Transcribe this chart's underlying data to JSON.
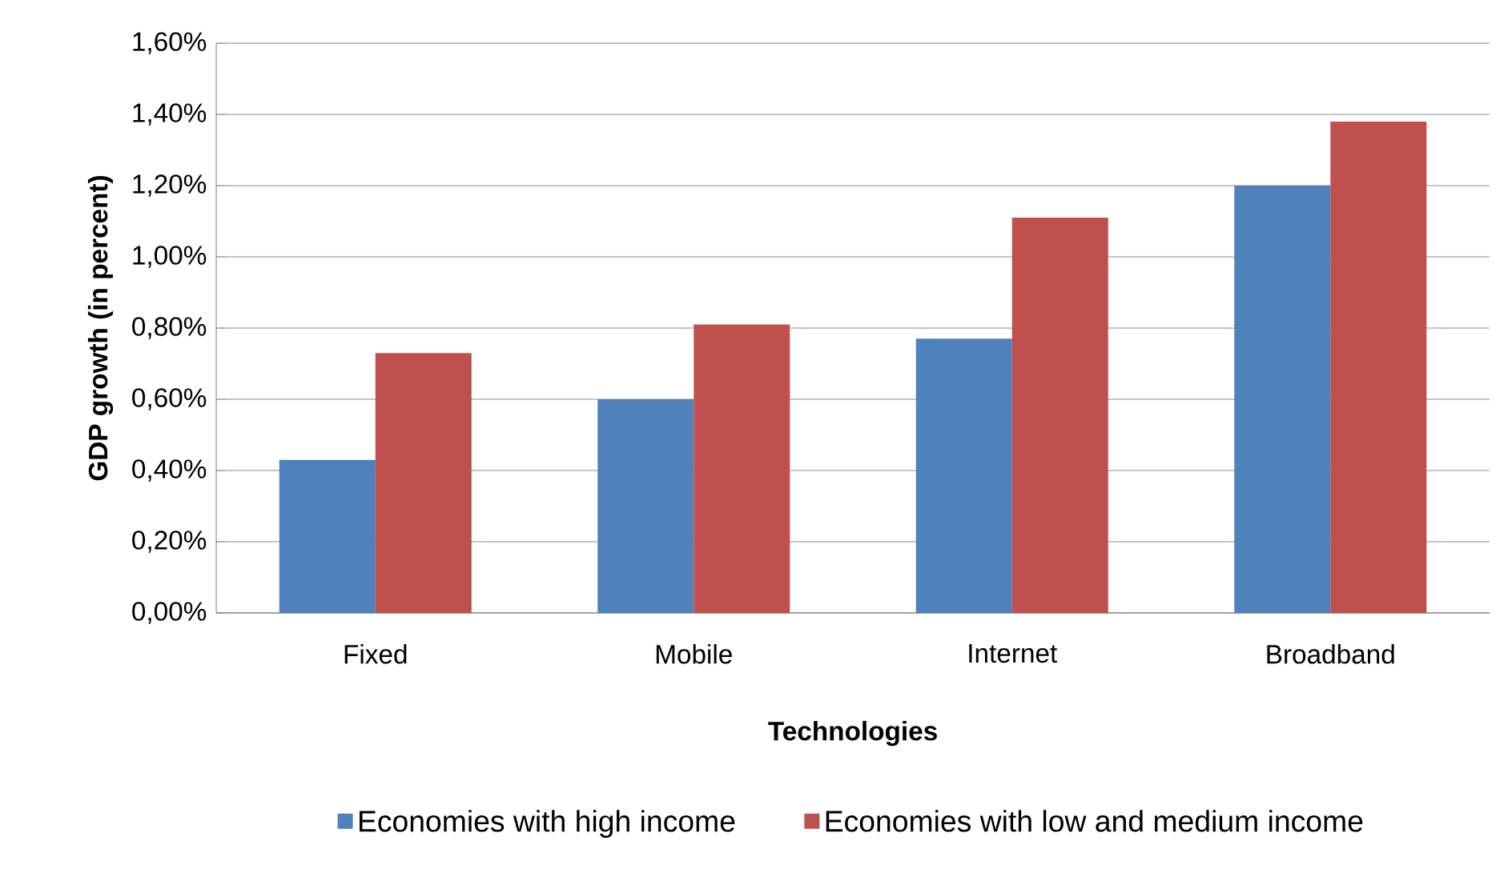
{
  "chart_data": {
    "type": "bar",
    "xlabel": "Technologies",
    "ylabel": "GDP growth (in percent)",
    "categories": [
      "Fixed",
      "Mobile",
      "Internet",
      "Broadband"
    ],
    "series": [
      {
        "name": "Economies with high income",
        "color": "#4f81bd",
        "values": [
          0.43,
          0.6,
          0.77,
          1.2
        ]
      },
      {
        "name": "Economies with low and medium income",
        "color": "#c0504d",
        "values": [
          0.73,
          0.81,
          1.11,
          1.38
        ]
      }
    ],
    "ylim": [
      0,
      1.6
    ],
    "yticks": [
      {
        "value": 0,
        "label": "0,00%"
      },
      {
        "value": 0.2,
        "label": "0,20%"
      },
      {
        "value": 0.4,
        "label": "0,40%"
      },
      {
        "value": 0.6,
        "label": "0,60%"
      },
      {
        "value": 0.8,
        "label": "0,80%"
      },
      {
        "value": 1.0,
        "label": "1,00%"
      },
      {
        "value": 1.2,
        "label": "1,20%"
      },
      {
        "value": 1.4,
        "label": "1,40%"
      },
      {
        "value": 1.6,
        "label": "1,60%"
      }
    ],
    "grid": "y",
    "legend": "bottom"
  }
}
